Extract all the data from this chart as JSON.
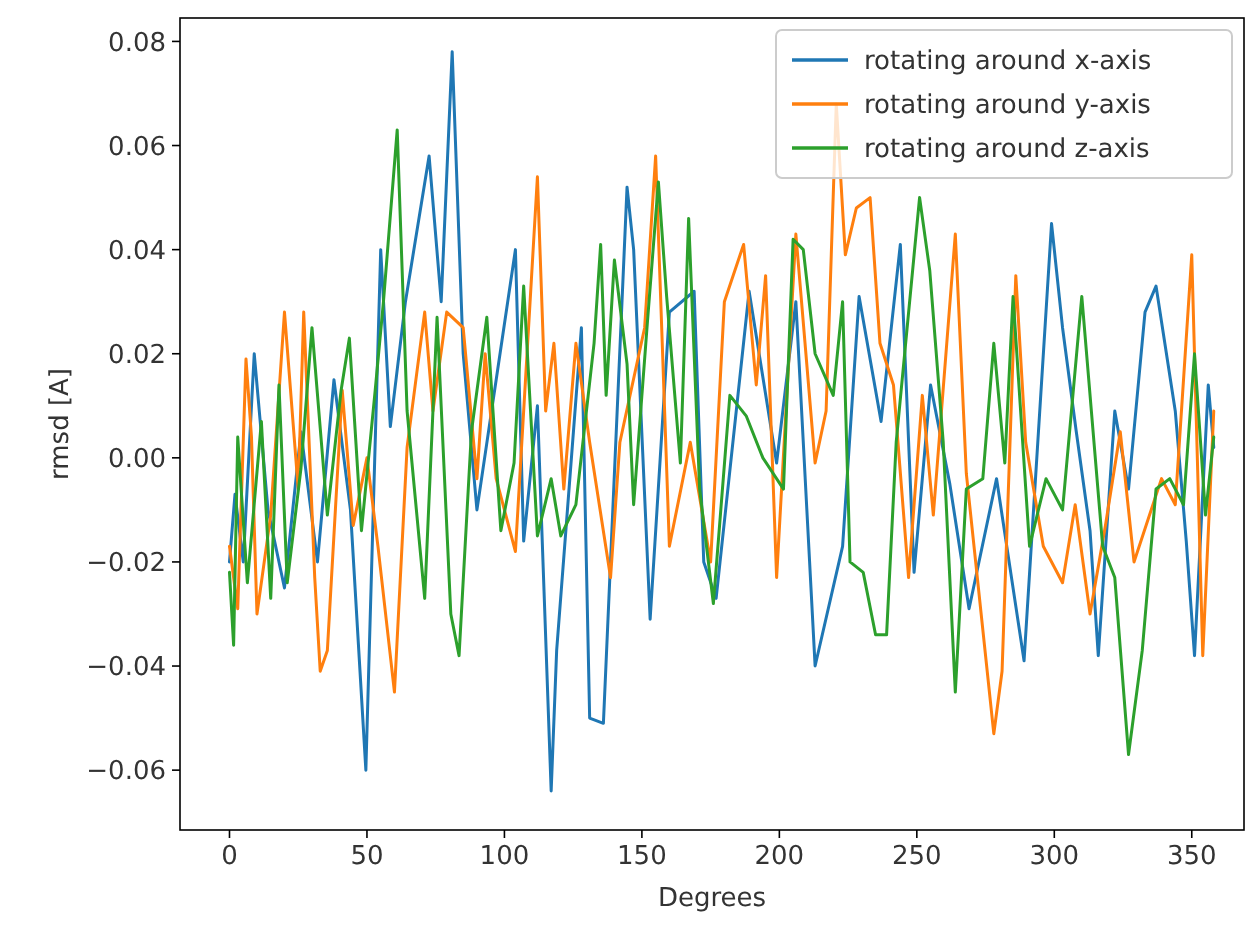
{
  "chart_data": {
    "type": "line",
    "xlabel": "Degrees",
    "ylabel": "rmsd [A]",
    "xlim": [
      -18,
      369
    ],
    "ylim": [
      -0.0715,
      0.0845
    ],
    "xticks": [
      0,
      50,
      100,
      150,
      200,
      250,
      300,
      350
    ],
    "yticks": [
      {
        "value": -0.06,
        "label": "−0.06"
      },
      {
        "value": -0.04,
        "label": "−0.04"
      },
      {
        "value": -0.02,
        "label": "−0.02"
      },
      {
        "value": 0,
        "label": "0.00"
      },
      {
        "value": 0.02,
        "label": "0.02"
      },
      {
        "value": 0.04,
        "label": "0.04"
      },
      {
        "value": 0.06,
        "label": "0.06"
      },
      {
        "value": 0.08,
        "label": "0.08"
      }
    ],
    "grid": false,
    "legend": "top right",
    "marker": "none",
    "line_style": "solid",
    "series": [
      {
        "name": "rotating around x-axis",
        "color": "#1f77b4",
        "x": [
          0,
          2,
          5,
          9,
          14,
          20,
          26,
          32,
          38,
          44,
          49.6,
          55,
          58.5,
          64,
          72.6,
          77,
          81,
          85,
          90,
          97,
          104,
          107,
          112,
          117,
          119,
          128,
          131,
          136,
          144.6,
          147,
          153,
          160,
          169,
          172.5,
          177,
          189,
          199,
          206,
          213,
          223,
          229,
          237,
          244,
          249,
          255,
          262,
          269,
          279,
          289,
          299,
          303,
          308,
          313,
          316,
          322,
          327,
          333,
          337,
          344,
          348,
          351,
          356,
          358
        ],
        "values": [
          -0.02,
          -0.007,
          -0.02,
          0.02,
          -0.01,
          -0.025,
          0.005,
          -0.02,
          0.015,
          -0.01,
          -0.06,
          0.04,
          0.006,
          0.03,
          0.058,
          0.03,
          0.078,
          0.02,
          -0.01,
          0.015,
          0.04,
          -0.016,
          0.01,
          -0.064,
          -0.037,
          0.025,
          -0.05,
          -0.051,
          0.052,
          0.04,
          -0.031,
          0.028,
          0.032,
          -0.02,
          -0.027,
          0.032,
          -0.001,
          0.03,
          -0.04,
          -0.017,
          0.031,
          0.007,
          0.041,
          -0.022,
          0.014,
          -0.005,
          -0.029,
          -0.004,
          -0.039,
          0.045,
          0.025,
          0.005,
          -0.014,
          -0.038,
          0.009,
          -0.006,
          0.028,
          0.033,
          0.009,
          -0.016,
          -0.038,
          0.014,
          0.002
        ]
      },
      {
        "name": "rotating around y-axis",
        "color": "#ff7f0e",
        "x": [
          0,
          3,
          6,
          8,
          10,
          15,
          20,
          25,
          27,
          31,
          33,
          35.6,
          41,
          45,
          50,
          54,
          60,
          64.6,
          71,
          74,
          79,
          85,
          90,
          93,
          97,
          104,
          112,
          115,
          118,
          121.6,
          126,
          131,
          138.6,
          142,
          151,
          155,
          160,
          167.6,
          175,
          180,
          187,
          191.6,
          195,
          199,
          206,
          213,
          217,
          220.7,
          224,
          228,
          233,
          236.6,
          241.5,
          247,
          252,
          256,
          264,
          268,
          278,
          281,
          286,
          289.6,
          296,
          303,
          307.6,
          313,
          318.6,
          324,
          329,
          339,
          344,
          350,
          354,
          358
        ],
        "values": [
          -0.017,
          -0.029,
          0.019,
          0.004,
          -0.03,
          -0.011,
          0.028,
          -0.006,
          0.028,
          -0.023,
          -0.041,
          -0.037,
          0.013,
          -0.013,
          0,
          -0.017,
          -0.045,
          0.002,
          0.028,
          0.009,
          0.028,
          0.025,
          -0.004,
          0.02,
          -0.004,
          -0.018,
          0.054,
          0.009,
          0.022,
          -0.006,
          0.022,
          0.003,
          -0.023,
          0.003,
          0.025,
          0.058,
          -0.017,
          0.003,
          -0.02,
          0.03,
          0.041,
          0.014,
          0.035,
          -0.023,
          0.043,
          -0.001,
          0.009,
          0.068,
          0.039,
          0.048,
          0.05,
          0.022,
          0.014,
          -0.023,
          0.012,
          -0.011,
          0.043,
          -0.003,
          -0.053,
          -0.041,
          0.035,
          0.003,
          -0.017,
          -0.024,
          -0.009,
          -0.03,
          -0.013,
          0.005,
          -0.02,
          -0.004,
          -0.009,
          0.039,
          -0.038,
          0.009
        ]
      },
      {
        "name": "rotating around z-axis",
        "color": "#2ca02c",
        "x": [
          0,
          1.5,
          3,
          6.5,
          11.6,
          15,
          18,
          21,
          26,
          30,
          35.6,
          40.6,
          43.6,
          48,
          53,
          56,
          61,
          64.6,
          71,
          75.5,
          80.5,
          83.5,
          88,
          93.6,
          98.7,
          103.5,
          107,
          112,
          117,
          120.5,
          126,
          132.6,
          135,
          137,
          140,
          144.6,
          147,
          152,
          156,
          159,
          164,
          167,
          171,
          176,
          182,
          188,
          194,
          201.5,
          205,
          208.7,
          213,
          219.6,
          223,
          225.7,
          230.5,
          235,
          239,
          242.5,
          251,
          254.7,
          259.6,
          264,
          268,
          274,
          278,
          282,
          285,
          291,
          297,
          303,
          310,
          317.6,
          322,
          327,
          332,
          337,
          342,
          347,
          351,
          355,
          358
        ],
        "values": [
          -0.022,
          -0.036,
          0.004,
          -0.024,
          0.007,
          -0.027,
          0.014,
          -0.024,
          -0.002,
          0.025,
          -0.011,
          0.013,
          0.023,
          -0.014,
          0.013,
          0.03,
          0.063,
          0.009,
          -0.027,
          0.027,
          -0.03,
          -0.038,
          0.005,
          0.027,
          -0.014,
          -0.001,
          0.033,
          -0.015,
          -0.004,
          -0.015,
          -0.009,
          0.022,
          0.041,
          0.012,
          0.038,
          0.018,
          -0.009,
          0.026,
          0.053,
          0.031,
          -0.001,
          0.046,
          -0.006,
          -0.028,
          0.012,
          0.008,
          0,
          -0.006,
          0.042,
          0.04,
          0.02,
          0.012,
          0.03,
          -0.02,
          -0.022,
          -0.034,
          -0.034,
          0.003,
          0.05,
          0.036,
          0.003,
          -0.045,
          -0.006,
          -0.004,
          0.022,
          -0.001,
          0.031,
          -0.017,
          -0.004,
          -0.01,
          0.031,
          -0.017,
          -0.023,
          -0.057,
          -0.037,
          -0.006,
          -0.004,
          -0.009,
          0.02,
          -0.011,
          0.004
        ]
      }
    ]
  }
}
